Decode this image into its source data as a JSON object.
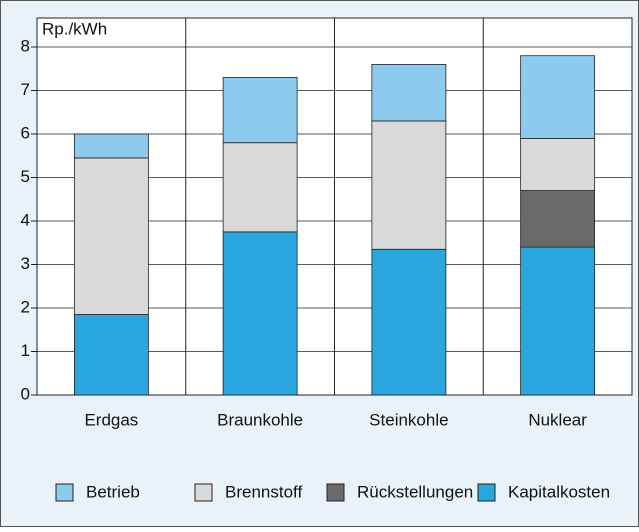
{
  "chart_data": {
    "type": "stacked_bar",
    "y_label": "Rp./kWh",
    "categories": [
      "Erdgas",
      "Braunkohle",
      "Steinkohle",
      "Nuklear"
    ],
    "series": [
      {
        "name": "Betrieb",
        "color": "#8dcbee",
        "values": [
          0.55,
          1.5,
          1.3,
          1.9
        ]
      },
      {
        "name": "Brennstoff",
        "color": "#d9d9d9",
        "values": [
          3.6,
          2.05,
          2.95,
          1.2
        ]
      },
      {
        "name": "Rückstellungen",
        "color": "#6a6a6a",
        "values": [
          0,
          0,
          0,
          1.3
        ]
      },
      {
        "name": "Kapitalkosten",
        "color": "#29a6dd",
        "values": [
          1.85,
          3.75,
          3.35,
          3.4
        ]
      }
    ],
    "ylim": [
      0,
      8
    ],
    "yticks": [
      0,
      1,
      2,
      3,
      4,
      5,
      6,
      7,
      8
    ],
    "grid": true,
    "legend": "bottom"
  }
}
